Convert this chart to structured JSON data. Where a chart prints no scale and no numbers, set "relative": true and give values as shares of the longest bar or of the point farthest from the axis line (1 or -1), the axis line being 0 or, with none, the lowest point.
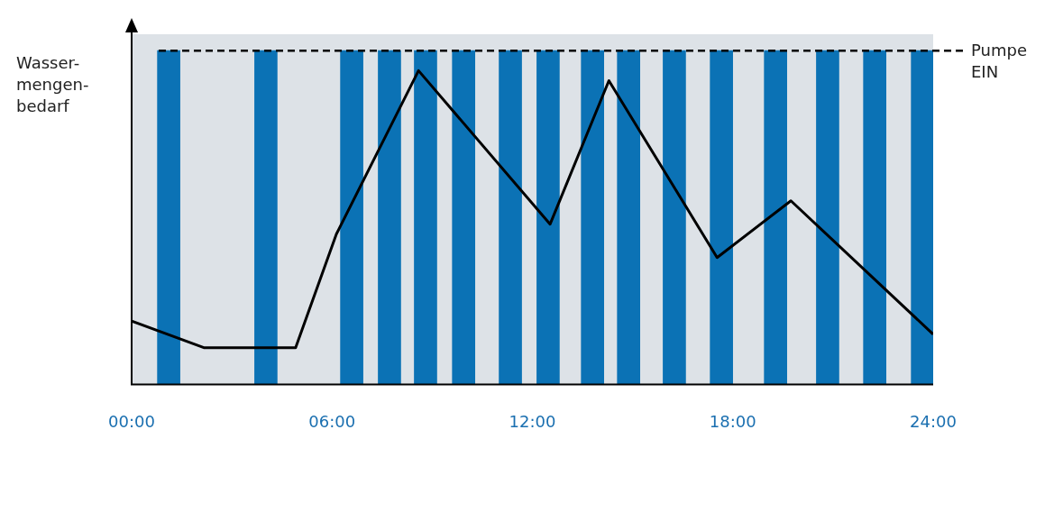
{
  "chart_data": {
    "type": "bar",
    "relative": true,
    "ylabel": "Wasser-mengen-bedarf",
    "xlim": [
      0,
      24
    ],
    "xticks": [
      {
        "value": 0,
        "label": "00:00"
      },
      {
        "value": 6,
        "label": "06:00"
      },
      {
        "value": 12,
        "label": "12:00"
      },
      {
        "value": 18,
        "label": "18:00"
      },
      {
        "value": 24,
        "label": "24:00"
      }
    ],
    "series": [
      {
        "color": "#0b72b5",
        "x": [
          1.11,
          4.02,
          6.59,
          7.72,
          8.8,
          9.94,
          11.34,
          12.47,
          13.8,
          14.88,
          16.25,
          17.66,
          19.28,
          20.84,
          22.25,
          23.68
        ],
        "values": [
          1,
          1,
          1,
          1,
          1,
          1,
          1,
          1,
          1,
          1,
          1,
          1,
          1,
          1,
          1,
          1
        ]
      },
      {
        "type": "line",
        "color": "#000000",
        "x": [
          0,
          2.16,
          4.91,
          6.13,
          8.59,
          12.53,
          14.29,
          17.53,
          19.74,
          24
        ],
        "values": [
          0.19,
          0.11,
          0.11,
          0.45,
          0.94,
          0.48,
          0.91,
          0.38,
          0.55,
          0.15
        ]
      }
    ],
    "ref_lines": [
      {
        "axis": "y",
        "value": 1,
        "label": "Pumpe EIN",
        "color": "#000000",
        "line_style": "dashed"
      }
    ],
    "legend": false,
    "marker": "none"
  }
}
